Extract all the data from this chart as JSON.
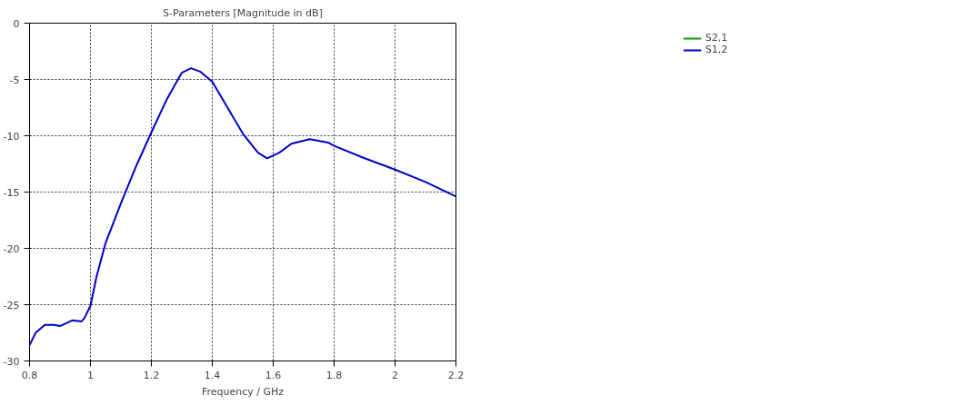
{
  "chart_data": {
    "type": "line",
    "title": "S-Parameters [Magnitude in dB]",
    "xlabel": "Frequency / GHz",
    "x": [
      0.8,
      0.82,
      0.85,
      0.88,
      0.9,
      0.94,
      0.97,
      0.98,
      1.0,
      1.02,
      1.05,
      1.1,
      1.15,
      1.2,
      1.25,
      1.3,
      1.33,
      1.36,
      1.4,
      1.45,
      1.5,
      1.55,
      1.58,
      1.62,
      1.66,
      1.72,
      1.78,
      1.8,
      1.9,
      2.0,
      2.1,
      2.2
    ],
    "series": [
      {
        "name": "S2,1",
        "color": "#00a000",
        "values": [
          null,
          null,
          null,
          null,
          null,
          null,
          null,
          null,
          null,
          null,
          null,
          null,
          null,
          null,
          null,
          null,
          null,
          null,
          null,
          null,
          null,
          null,
          null,
          null,
          null,
          null,
          null,
          null,
          null,
          null,
          null,
          null
        ]
      },
      {
        "name": "S1,2",
        "color": "#0000cc",
        "values": [
          -28.6,
          -27.5,
          -26.8,
          -26.8,
          -26.9,
          -26.4,
          -26.5,
          -26.2,
          -25.1,
          -22.5,
          -19.5,
          -16.0,
          -12.7,
          -9.7,
          -6.8,
          -4.4,
          -4.0,
          -4.3,
          -5.2,
          -7.5,
          -9.8,
          -11.5,
          -12.0,
          -11.5,
          -10.7,
          -10.3,
          -10.6,
          -10.9,
          -12.0,
          -13.0,
          -14.1,
          -15.4
        ]
      }
    ],
    "xlim": [
      0.8,
      2.2
    ],
    "xticks": [
      {
        "value": 0.8,
        "label": "0.8"
      },
      1,
      {
        "value": 1.2,
        "label": "1.2"
      },
      {
        "value": 1.4,
        "label": "1.4"
      },
      {
        "value": 1.6,
        "label": "1.6"
      },
      {
        "value": 1.8,
        "label": "1.8"
      },
      2,
      {
        "value": 2.2,
        "label": "2.2"
      }
    ],
    "ylim": [
      -30,
      0
    ],
    "yticks": [
      -30,
      -25,
      -20,
      -15,
      -10,
      -5,
      0
    ],
    "grid": true,
    "legend": "top right",
    "marker": "none",
    "line_style": "solid"
  }
}
